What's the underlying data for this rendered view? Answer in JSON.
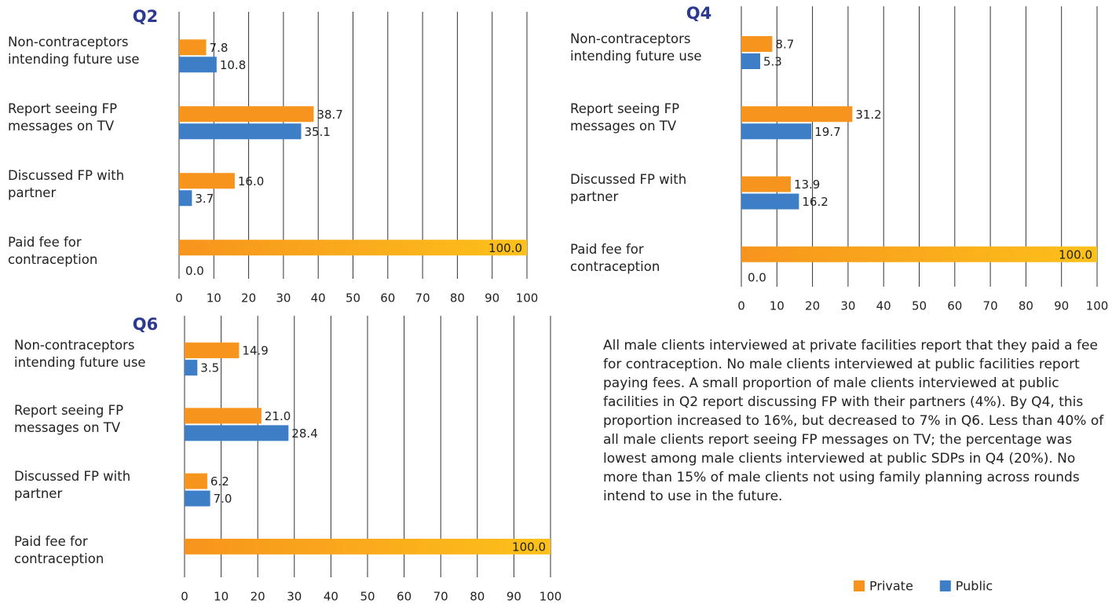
{
  "chart_data": [
    {
      "type": "hbar",
      "title": "Q2",
      "categories": [
        "Non-contraceptors intending future use",
        "Report seeing FP messages on TV",
        "Discussed FP with partner",
        "Paid fee for contraception"
      ],
      "series": [
        {
          "name": "Private",
          "color": "#f7941d",
          "values": [
            7.8,
            38.7,
            16.0,
            100.0
          ],
          "value_labels": [
            "7.8",
            "38.7",
            "16.0",
            "100.0"
          ]
        },
        {
          "name": "Public",
          "color": "#3d7ec6",
          "values": [
            10.8,
            35.1,
            3.7,
            0.0
          ],
          "value_labels": [
            "10.8",
            "35.1",
            "3.7",
            "0.0"
          ]
        }
      ],
      "xlim": [
        0,
        100
      ],
      "xticks": [
        0,
        10,
        20,
        30,
        40,
        50,
        60,
        70,
        80,
        90,
        100
      ],
      "grid": true
    },
    {
      "type": "hbar",
      "title": "Q4",
      "categories": [
        "Non-contraceptors intending future use",
        "Report seeing FP messages on TV",
        "Discussed FP with partner",
        "Paid fee for contraception"
      ],
      "series": [
        {
          "name": "Private",
          "color": "#f7941d",
          "values": [
            8.7,
            31.2,
            13.9,
            100.0
          ],
          "value_labels": [
            "8.7",
            "31.2",
            "13.9",
            "100.0"
          ]
        },
        {
          "name": "Public",
          "color": "#3d7ec6",
          "values": [
            5.3,
            19.7,
            16.2,
            0.0
          ],
          "value_labels": [
            "5.3",
            "19.7",
            "16.2",
            "0.0"
          ]
        }
      ],
      "xlim": [
        0,
        100
      ],
      "xticks": [
        0,
        10,
        20,
        30,
        40,
        50,
        60,
        70,
        80,
        90,
        100
      ],
      "grid": true
    },
    {
      "type": "hbar",
      "title": "Q6",
      "categories": [
        "Non-contraceptors intending future use",
        "Report seeing FP messages on TV",
        "Discussed FP with partner",
        "Paid fee for contraception"
      ],
      "series": [
        {
          "name": "Private",
          "color": "#f7941d",
          "values": [
            14.9,
            21.0,
            6.2,
            100.0
          ],
          "value_labels": [
            "14.9",
            "21.0",
            "6.2",
            "100.0"
          ]
        },
        {
          "name": "Public",
          "color": "#3d7ec6",
          "values": [
            3.5,
            28.4,
            7.0,
            null
          ],
          "value_labels": [
            "3.5",
            "28.4",
            "7.0",
            null
          ]
        }
      ],
      "xlim": [
        0,
        100
      ],
      "xticks": [
        0,
        10,
        20,
        30,
        40,
        50,
        60,
        70,
        80,
        90,
        100
      ],
      "grid": true
    }
  ],
  "note": "All male clients interviewed at private facilities report that they paid a fee for contraception.  No male clients interviewed at public facilities report paying fees. A small proportion of male clients interviewed at public facilities in Q2 report discussing FP with their partners (4%). By Q4, this proportion increased to 16%, but decreased to 7% in Q6. Less than 40% of all male clients report seeing FP messages on TV; the percentage was lowest among male clients interviewed at public SDPs in Q4 (20%). No more than 15% of male clients not using family planning across rounds intend to use in the future."
}
